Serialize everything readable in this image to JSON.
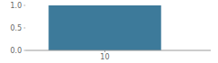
{
  "chart_data": {
    "type": "bar",
    "x": [
      10
    ],
    "values": [
      1
    ],
    "color": "#3d7a9a",
    "xlim": [
      4,
      18
    ],
    "xticks": [
      10
    ],
    "ylim": [
      0,
      1
    ],
    "yticks": [
      {
        "value": 0,
        "label": "0.0"
      },
      0.5,
      {
        "value": 1,
        "label": "1.0"
      }
    ]
  }
}
